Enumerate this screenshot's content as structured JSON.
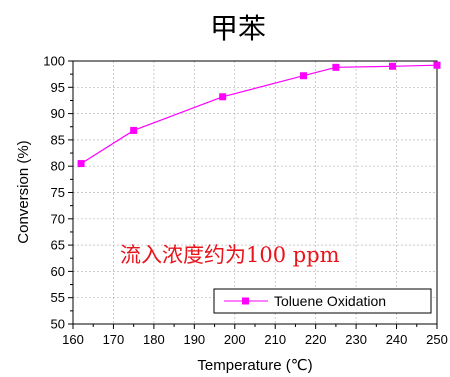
{
  "chart_data": {
    "type": "line",
    "title": "甲苯",
    "xlabel": "Temperature (℃)",
    "ylabel": "Conversion (%)",
    "xlim": [
      160,
      250
    ],
    "ylim": [
      50,
      100
    ],
    "xticks": [
      160,
      170,
      180,
      190,
      200,
      210,
      220,
      230,
      240,
      250
    ],
    "yticks": [
      50,
      55,
      60,
      65,
      70,
      75,
      80,
      85,
      90,
      95,
      100
    ],
    "grid": true,
    "legend_position": "bottom-right",
    "annotation": "流入浓度约为100 ppm",
    "annotation_color": "#e8141c",
    "series": [
      {
        "name": "Toluene Oxidation",
        "color": "#ff00ff",
        "marker": "square",
        "x": [
          162,
          175,
          197,
          217,
          225,
          239,
          250
        ],
        "y": [
          80.5,
          86.8,
          93.2,
          97.2,
          98.8,
          99.0,
          99.2
        ]
      }
    ]
  }
}
